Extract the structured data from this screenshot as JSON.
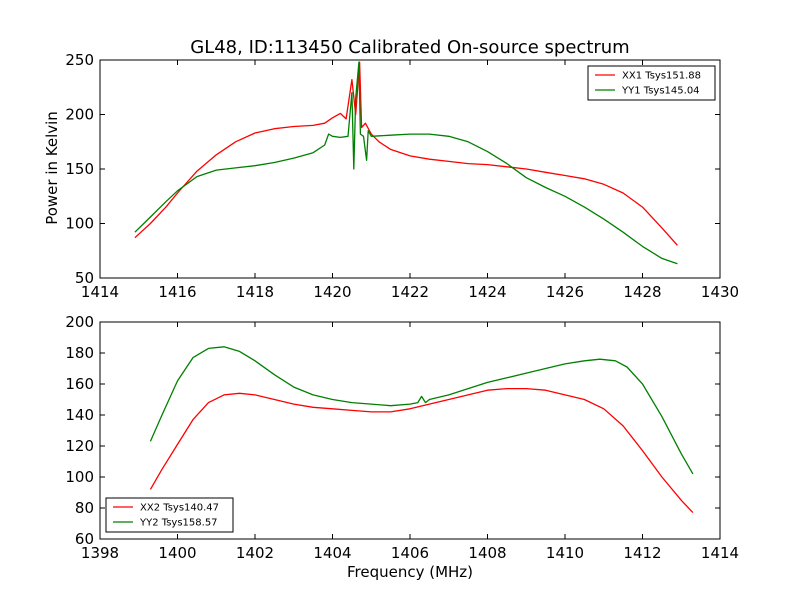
{
  "figure": {
    "title": "GL48, ID:113450 Calibrated On-source spectrum",
    "ylabel": "Power in Kelvin",
    "xlabel": "Frequency (MHz)"
  },
  "chart_data": [
    {
      "type": "line",
      "title": "GL48, ID:113450 Calibrated On-source spectrum",
      "ylabel": "Power in Kelvin",
      "xlabel": "",
      "xlim": [
        1414,
        1430
      ],
      "ylim": [
        50,
        250
      ],
      "xticks": [
        1414,
        1416,
        1418,
        1420,
        1422,
        1424,
        1426,
        1428,
        1430
      ],
      "yticks": [
        50,
        100,
        150,
        200,
        250
      ],
      "legend_position": "top-right",
      "grid": false,
      "series": [
        {
          "name": "XX1 Tsys151.88",
          "color": "#ff0000",
          "x": [
            1414.9,
            1415.3,
            1415.7,
            1416.0,
            1416.5,
            1417.0,
            1417.5,
            1418.0,
            1418.5,
            1419.0,
            1419.5,
            1419.8,
            1420.0,
            1420.2,
            1420.35,
            1420.5,
            1420.6,
            1420.7,
            1420.75,
            1420.85,
            1421.0,
            1421.2,
            1421.5,
            1422.0,
            1422.5,
            1423.0,
            1423.5,
            1424.0,
            1424.5,
            1425.0,
            1425.5,
            1426.0,
            1426.5,
            1427.0,
            1427.5,
            1428.0,
            1428.5,
            1428.9
          ],
          "y": [
            87,
            100,
            115,
            128,
            148,
            163,
            175,
            183,
            187,
            189,
            190,
            192,
            197,
            201,
            196,
            232,
            200,
            248,
            188,
            192,
            182,
            175,
            168,
            162,
            159,
            157,
            155,
            154,
            152,
            150,
            147,
            144,
            141,
            136,
            128,
            115,
            96,
            80
          ]
        },
        {
          "name": "YY1 Tsys145.04",
          "color": "#008000",
          "x": [
            1414.9,
            1415.3,
            1415.7,
            1416.0,
            1416.5,
            1417.0,
            1417.5,
            1418.0,
            1418.5,
            1419.0,
            1419.5,
            1419.8,
            1419.9,
            1420.0,
            1420.2,
            1420.4,
            1420.5,
            1420.55,
            1420.6,
            1420.68,
            1420.72,
            1420.8,
            1420.88,
            1420.92,
            1421.0,
            1421.5,
            1422.0,
            1422.5,
            1423.0,
            1423.5,
            1424.0,
            1424.5,
            1425.0,
            1425.5,
            1426.0,
            1426.5,
            1427.0,
            1427.5,
            1428.0,
            1428.5,
            1428.9
          ],
          "y": [
            92,
            106,
            120,
            130,
            143,
            149,
            151,
            153,
            156,
            160,
            165,
            172,
            182,
            180,
            179,
            180,
            220,
            150,
            215,
            248,
            182,
            180,
            158,
            185,
            180,
            181,
            182,
            182,
            180,
            175,
            166,
            155,
            142,
            133,
            125,
            115,
            104,
            92,
            79,
            68,
            63
          ]
        }
      ]
    },
    {
      "type": "line",
      "title": "",
      "ylabel": "",
      "xlabel": "Frequency (MHz)",
      "xlim": [
        1398,
        1414
      ],
      "ylim": [
        60,
        200
      ],
      "xticks": [
        1398,
        1400,
        1402,
        1404,
        1406,
        1408,
        1410,
        1412,
        1414
      ],
      "yticks": [
        60,
        80,
        100,
        120,
        140,
        160,
        180,
        200
      ],
      "legend_position": "bottom-left",
      "grid": false,
      "series": [
        {
          "name": "XX2 Tsys140.47",
          "color": "#ff0000",
          "x": [
            1399.3,
            1399.6,
            1400.0,
            1400.4,
            1400.8,
            1401.2,
            1401.6,
            1402.0,
            1402.5,
            1403.0,
            1403.5,
            1404.0,
            1404.5,
            1405.0,
            1405.5,
            1406.0,
            1406.5,
            1407.0,
            1407.5,
            1408.0,
            1408.5,
            1409.0,
            1409.5,
            1410.0,
            1410.5,
            1411.0,
            1411.5,
            1412.0,
            1412.5,
            1413.0,
            1413.3
          ],
          "y": [
            92,
            105,
            121,
            137,
            148,
            153,
            154,
            153,
            150,
            147,
            145,
            144,
            143,
            142,
            142,
            144,
            147,
            150,
            153,
            156,
            157,
            157,
            156,
            153,
            150,
            144,
            133,
            117,
            100,
            85,
            77
          ]
        },
        {
          "name": "YY2 Tsys158.57",
          "color": "#008000",
          "x": [
            1399.3,
            1399.6,
            1400.0,
            1400.4,
            1400.8,
            1401.2,
            1401.6,
            1402.0,
            1402.5,
            1403.0,
            1403.5,
            1404.0,
            1404.5,
            1405.0,
            1405.5,
            1406.0,
            1406.2,
            1406.3,
            1406.4,
            1406.5,
            1407.0,
            1407.5,
            1408.0,
            1408.5,
            1409.0,
            1409.5,
            1410.0,
            1410.5,
            1410.9,
            1411.3,
            1411.6,
            1412.0,
            1412.5,
            1413.0,
            1413.3
          ],
          "y": [
            123,
            140,
            162,
            177,
            183,
            184,
            181,
            175,
            166,
            158,
            153,
            150,
            148,
            147,
            146,
            147,
            148,
            152,
            148,
            150,
            153,
            157,
            161,
            164,
            167,
            170,
            173,
            175,
            176,
            175,
            171,
            160,
            139,
            115,
            102
          ]
        }
      ]
    }
  ]
}
